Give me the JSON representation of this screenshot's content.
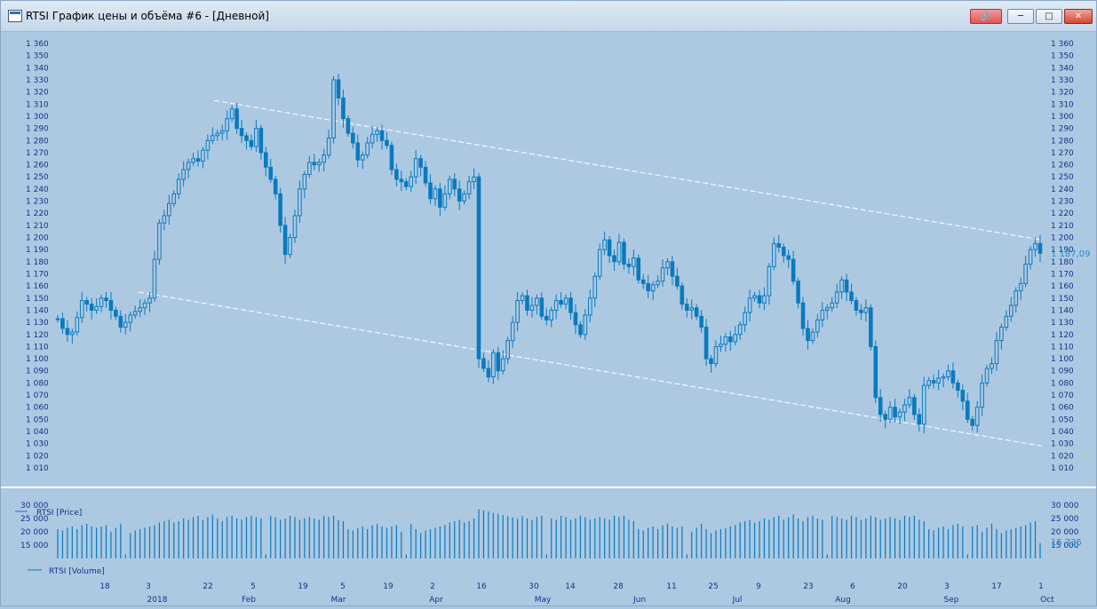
{
  "window": {
    "title": "RTSI График цены и объёма #6 - [Дневной]",
    "buttons": {
      "link": "link-icon",
      "minimize": "minimize-icon",
      "maximize": "maximize-icon",
      "close": "close-icon"
    }
  },
  "colors": {
    "background": "#adc9e2",
    "series": "#0a7abf",
    "axis_text": "#1a2f8a",
    "channel": "#ffffff",
    "last_label": "#1a8fd0"
  },
  "chart_data": [
    {
      "type": "candlestick",
      "series_label": "RTSI [Price]",
      "ylim": [
        1010,
        1360
      ],
      "y_ticks": [
        1360,
        1350,
        1340,
        1330,
        1320,
        1310,
        1300,
        1290,
        1280,
        1270,
        1260,
        1250,
        1240,
        1230,
        1220,
        1210,
        1200,
        1190,
        1180,
        1170,
        1160,
        1150,
        1140,
        1130,
        1120,
        1110,
        1100,
        1090,
        1080,
        1070,
        1060,
        1050,
        1040,
        1030,
        1020,
        1010
      ],
      "y_tick_labels": [
        "1 360",
        "1 350",
        "1 340",
        "1 330",
        "1 320",
        "1 310",
        "1 300",
        "1 290",
        "1 280",
        "1 270",
        "1 260",
        "1 250",
        "1 240",
        "1 230",
        "1 220",
        "1 210",
        "1 200",
        "1 190",
        "1 180",
        "1 170",
        "1 160",
        "1 150",
        "1 140",
        "1 130",
        "1 120",
        "1 110",
        "1 100",
        "1 090",
        "1 080",
        "1 070",
        "1 060",
        "1 050",
        "1 040",
        "1 030",
        "1 020",
        "1 010"
      ],
      "last_value_label": "1 187,09",
      "closes": [
        1133,
        1125,
        1120,
        1122,
        1134,
        1148,
        1145,
        1140,
        1143,
        1150,
        1148,
        1140,
        1135,
        1126,
        1130,
        1136,
        1139,
        1142,
        1146,
        1150,
        1182,
        1212,
        1218,
        1228,
        1236,
        1248,
        1256,
        1262,
        1265,
        1263,
        1272,
        1280,
        1284,
        1286,
        1288,
        1298,
        1306,
        1290,
        1284,
        1280,
        1275,
        1290,
        1270,
        1258,
        1248,
        1236,
        1210,
        1186,
        1200,
        1218,
        1240,
        1252,
        1262,
        1260,
        1262,
        1268,
        1282,
        1330,
        1315,
        1298,
        1286,
        1278,
        1264,
        1268,
        1278,
        1285,
        1288,
        1280,
        1276,
        1256,
        1248,
        1246,
        1242,
        1250,
        1265,
        1258,
        1245,
        1232,
        1240,
        1225,
        1236,
        1248,
        1240,
        1230,
        1236,
        1246,
        1250,
        1100,
        1092,
        1085,
        1105,
        1090,
        1100,
        1115,
        1130,
        1148,
        1152,
        1140,
        1144,
        1150,
        1135,
        1132,
        1140,
        1148,
        1145,
        1150,
        1138,
        1128,
        1120,
        1136,
        1150,
        1168,
        1190,
        1198,
        1185,
        1180,
        1196,
        1178,
        1176,
        1183,
        1165,
        1162,
        1156,
        1161,
        1164,
        1175,
        1180,
        1168,
        1160,
        1145,
        1140,
        1142,
        1135,
        1126,
        1100,
        1096,
        1110,
        1112,
        1118,
        1114,
        1120,
        1128,
        1138,
        1150,
        1152,
        1146,
        1152,
        1176,
        1195,
        1192,
        1185,
        1182,
        1164,
        1146,
        1125,
        1115,
        1122,
        1132,
        1140,
        1142,
        1146,
        1155,
        1165,
        1155,
        1148,
        1140,
        1138,
        1142,
        1110,
        1068,
        1054,
        1050,
        1060,
        1052,
        1056,
        1062,
        1068,
        1054,
        1046,
        1078,
        1082,
        1080,
        1084,
        1085,
        1090,
        1080,
        1074,
        1065,
        1050,
        1045,
        1060,
        1080,
        1092,
        1096,
        1115,
        1126,
        1135,
        1144,
        1156,
        1162,
        1178,
        1190,
        1195,
        1187
      ]
    },
    {
      "type": "bar",
      "series_label": "RTSI [Volume]",
      "ylim": [
        10000,
        32000
      ],
      "y_ticks": [
        30000,
        25000,
        20000,
        15000
      ],
      "y_tick_labels": [
        "30 000",
        "25 000",
        "20 000",
        "15 000"
      ],
      "last_value_label": "15 735",
      "volume_pattern": [
        21000,
        20500,
        21500,
        22000,
        21000,
        22500,
        23000,
        22000,
        21500,
        22000,
        22500,
        20000,
        21500,
        23000,
        21000,
        19500,
        20500,
        21000,
        21500,
        22000,
        22500,
        23500,
        24000,
        24500,
        23500,
        24000,
        25000,
        24500,
        25500,
        26000,
        24500,
        25500,
        26500,
        25000,
        24000,
        25500,
        26000,
        25000,
        24500,
        25500,
        26000,
        25500,
        25000,
        24500,
        26000,
        25500,
        24500,
        25000,
        26000,
        25500,
        24500,
        25000,
        25500,
        25000,
        24500,
        26000,
        25500,
        26000,
        24500,
        24000
      ]
    }
  ],
  "x_axis": {
    "day_labels": [
      "18",
      "3",
      "22",
      "5",
      "19",
      "5",
      "19",
      "2",
      "16",
      "30",
      "14",
      "28",
      "11",
      "25",
      "9",
      "23",
      "6",
      "20",
      "3",
      "17",
      "1"
    ],
    "month_labels": [
      "2018",
      "Feb",
      "Mar",
      "Apr",
      "May",
      "Jun",
      "Jul",
      "Aug",
      "Sep",
      "Oct"
    ]
  }
}
